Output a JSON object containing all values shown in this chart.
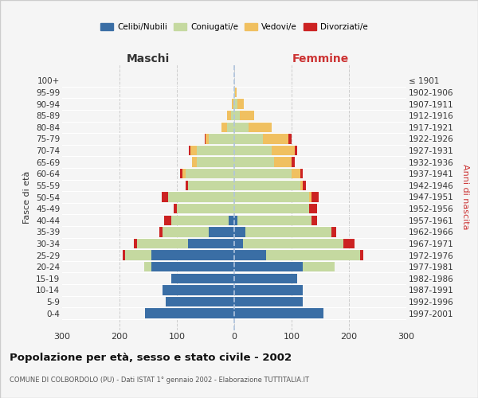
{
  "age_groups": [
    "0-4",
    "5-9",
    "10-14",
    "15-19",
    "20-24",
    "25-29",
    "30-34",
    "35-39",
    "40-44",
    "45-49",
    "50-54",
    "55-59",
    "60-64",
    "65-69",
    "70-74",
    "75-79",
    "80-84",
    "85-89",
    "90-94",
    "95-99",
    "100+"
  ],
  "birth_years": [
    "1997-2001",
    "1992-1996",
    "1987-1991",
    "1982-1986",
    "1977-1981",
    "1972-1976",
    "1967-1971",
    "1962-1966",
    "1957-1961",
    "1952-1956",
    "1947-1951",
    "1942-1946",
    "1937-1941",
    "1932-1936",
    "1927-1931",
    "1922-1926",
    "1917-1921",
    "1912-1916",
    "1907-1911",
    "1902-1906",
    "≤ 1901"
  ],
  "males": {
    "celibe": [
      155,
      120,
      125,
      110,
      145,
      145,
      80,
      45,
      10,
      0,
      0,
      0,
      0,
      0,
      0,
      0,
      0,
      0,
      0,
      0,
      0
    ],
    "coniugato": [
      0,
      0,
      0,
      0,
      12,
      45,
      90,
      80,
      100,
      100,
      115,
      80,
      85,
      65,
      65,
      45,
      12,
      5,
      2,
      0,
      0
    ],
    "vedovo": [
      0,
      0,
      0,
      0,
      0,
      0,
      0,
      0,
      0,
      0,
      0,
      0,
      5,
      8,
      12,
      5,
      10,
      8,
      2,
      0,
      0
    ],
    "divorziato": [
      0,
      0,
      0,
      0,
      0,
      5,
      5,
      5,
      12,
      5,
      12,
      5,
      5,
      0,
      2,
      2,
      0,
      0,
      0,
      0,
      0
    ]
  },
  "females": {
    "nubile": [
      155,
      120,
      120,
      110,
      120,
      55,
      15,
      20,
      5,
      0,
      0,
      0,
      0,
      0,
      0,
      0,
      0,
      0,
      0,
      0,
      0
    ],
    "coniugata": [
      0,
      0,
      0,
      0,
      55,
      165,
      175,
      150,
      130,
      130,
      130,
      115,
      100,
      70,
      65,
      50,
      25,
      10,
      5,
      2,
      0
    ],
    "vedova": [
      0,
      0,
      0,
      0,
      0,
      0,
      0,
      0,
      0,
      0,
      5,
      5,
      15,
      30,
      40,
      45,
      40,
      25,
      12,
      2,
      0
    ],
    "divorziata": [
      0,
      0,
      0,
      0,
      0,
      5,
      20,
      8,
      10,
      15,
      12,
      5,
      5,
      5,
      5,
      5,
      0,
      0,
      0,
      0,
      0
    ]
  },
  "colors": {
    "celibe": "#3a6ea5",
    "coniugato": "#c5d9a0",
    "vedovo": "#f0c060",
    "divorziato": "#cc2222"
  },
  "title": "Popolazione per età, sesso e stato civile - 2002",
  "subtitle": "COMUNE DI COLBORDOLO (PU) - Dati ISTAT 1° gennaio 2002 - Elaborazione TUTTITALIA.IT",
  "xlabel_left": "Maschi",
  "xlabel_right": "Femmine",
  "ylabel_left": "Fasce di età",
  "ylabel_right": "Anni di nascita",
  "xlim": 300,
  "bg_color": "#f5f5f5",
  "grid_color": "#cccccc"
}
